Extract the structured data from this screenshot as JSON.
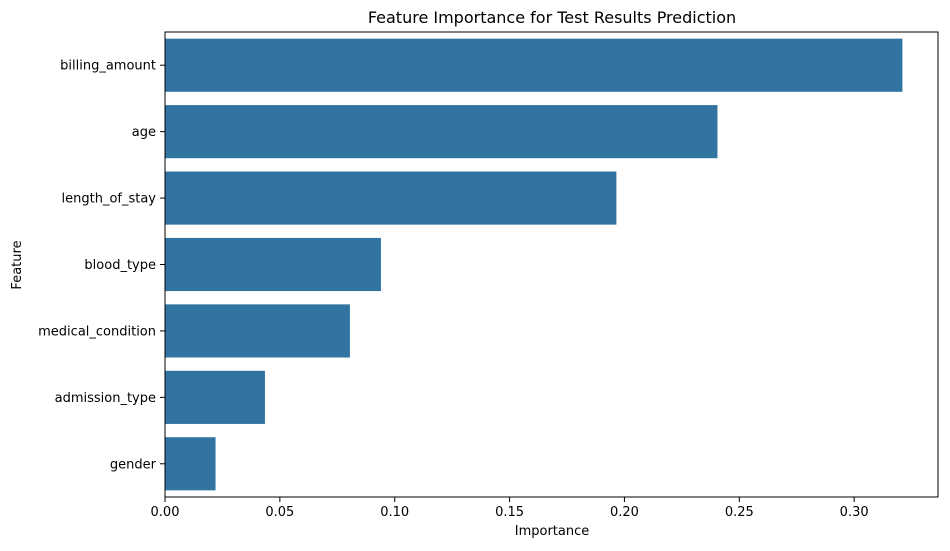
{
  "chart_data": {
    "type": "bar",
    "orientation": "horizontal",
    "title": "Feature Importance for Test Results Prediction",
    "xlabel": "Importance",
    "ylabel": "Feature",
    "categories": [
      "billing_amount",
      "age",
      "length_of_stay",
      "blood_type",
      "medical_condition",
      "admission_type",
      "gender"
    ],
    "values": [
      0.321,
      0.2405,
      0.1965,
      0.094,
      0.0805,
      0.0435,
      0.022
    ],
    "xlim": [
      0,
      0.3365
    ],
    "xticks": [
      0.0,
      0.05,
      0.1,
      0.15,
      0.2,
      0.25,
      0.3
    ],
    "xtick_labels": [
      "0.00",
      "0.05",
      "0.10",
      "0.15",
      "0.20",
      "0.25",
      "0.30"
    ],
    "bar_color": "#3274a1",
    "grid": false,
    "legend": "none"
  }
}
